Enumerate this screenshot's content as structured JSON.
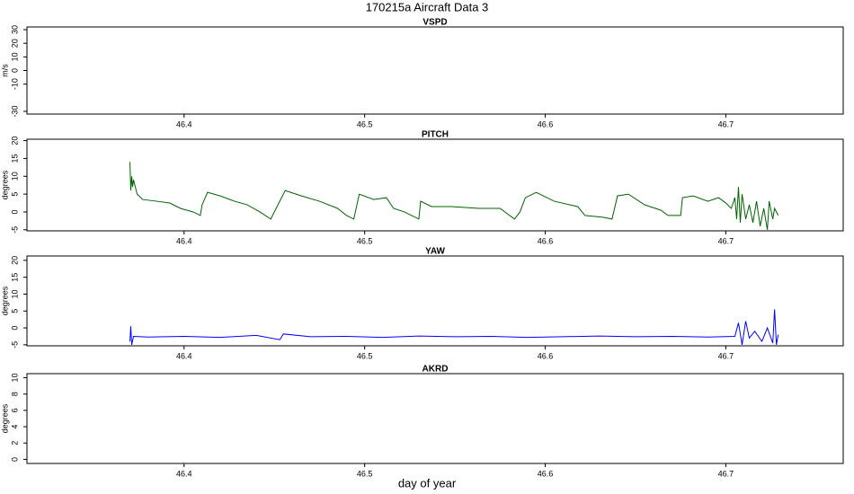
{
  "title": "170215a   Aircraft Data 3",
  "xlabel": "day of year",
  "chart_data": [
    {
      "type": "line",
      "title": "VSPD",
      "ylabel": "m/s",
      "xlim": [
        46.313,
        46.765
      ],
      "xticks": [
        46.4,
        46.5,
        46.6,
        46.7
      ],
      "ylim": [
        -32,
        32
      ],
      "yticks": [
        -30,
        -10,
        0,
        10,
        20,
        30
      ],
      "series": []
    },
    {
      "type": "line",
      "title": "PITCH",
      "ylabel": "degrees",
      "xlim": [
        46.313,
        46.765
      ],
      "xticks": [
        46.4,
        46.5,
        46.6,
        46.7
      ],
      "ylim": [
        -5.3,
        20.4
      ],
      "yticks": [
        -5,
        0,
        5,
        10,
        15,
        20
      ],
      "series": [
        {
          "color": "#006400",
          "x": [
            46.37,
            46.3705,
            46.371,
            46.3715,
            46.372,
            46.374,
            46.377,
            46.385,
            46.392,
            46.398,
            46.405,
            46.409,
            46.41,
            46.413,
            46.42,
            46.428,
            46.435,
            46.442,
            46.448,
            46.452,
            46.456,
            46.465,
            46.475,
            46.485,
            46.49,
            46.494,
            46.497,
            46.505,
            46.512,
            46.516,
            46.522,
            46.53,
            46.531,
            46.537,
            46.548,
            46.563,
            46.575,
            46.583,
            46.586,
            46.589,
            46.595,
            46.605,
            46.618,
            46.622,
            46.632,
            46.637,
            46.64,
            46.646,
            46.655,
            46.664,
            46.668,
            46.675,
            46.676,
            46.682,
            46.69,
            46.696,
            46.7,
            46.703,
            46.705,
            46.706,
            46.707,
            46.708,
            46.709,
            46.711,
            46.713,
            46.715,
            46.717,
            46.719,
            46.721,
            46.723,
            46.724,
            46.726,
            46.727,
            46.729
          ],
          "values": [
            14,
            6,
            10,
            7,
            9,
            5,
            3.5,
            3,
            2.5,
            1,
            0,
            -1,
            2,
            5.5,
            4.5,
            3,
            2,
            0,
            -2,
            2,
            6,
            4.5,
            3,
            1,
            -1,
            -2,
            5,
            3.5,
            4,
            1,
            0,
            -2,
            3,
            1.5,
            1.5,
            1,
            1,
            -2,
            0,
            4,
            5.5,
            3,
            1.5,
            -1,
            -1.5,
            -2,
            4.5,
            5,
            2,
            0.5,
            -1,
            -1,
            4,
            4.5,
            3,
            4,
            2.5,
            1,
            4,
            -2,
            7,
            -3,
            5,
            -2,
            2,
            -3,
            3,
            -4,
            1,
            -5,
            3,
            -2,
            1,
            -1
          ]
        }
      ]
    },
    {
      "type": "line",
      "title": "YAW",
      "ylabel": "degrees",
      "xlim": [
        46.313,
        46.765
      ],
      "xticks": [
        46.4,
        46.5,
        46.6,
        46.7
      ],
      "ylim": [
        -5.3,
        21.3
      ],
      "yticks": [
        -5,
        0,
        5,
        10,
        15,
        20
      ],
      "series": [
        {
          "color": "#0000ff",
          "x": [
            46.37,
            46.3705,
            46.371,
            46.372,
            46.38,
            46.4,
            46.42,
            46.44,
            46.453,
            46.455,
            46.47,
            46.49,
            46.51,
            46.53,
            46.55,
            46.57,
            46.59,
            46.61,
            46.63,
            46.65,
            46.67,
            46.69,
            46.705,
            46.707,
            46.709,
            46.711,
            46.713,
            46.716,
            46.72,
            46.723,
            46.726,
            46.727,
            46.728,
            46.729
          ],
          "values": [
            -4,
            0.5,
            -5,
            -2.5,
            -2.7,
            -2.5,
            -2.8,
            -2.2,
            -3.5,
            -1.8,
            -2.6,
            -2.5,
            -2.8,
            -2.4,
            -2.6,
            -2.5,
            -2.8,
            -2.6,
            -2.4,
            -2.6,
            -2.5,
            -2.7,
            -2.5,
            1.5,
            -5,
            2,
            -3,
            -1,
            -4,
            0,
            -4.5,
            5.5,
            -5,
            -2
          ]
        }
      ]
    },
    {
      "type": "line",
      "title": "AKRD",
      "ylabel": "degrees",
      "xlim": [
        46.313,
        46.765
      ],
      "xticks": [
        46.4,
        46.5,
        46.6,
        46.7
      ],
      "ylim": [
        -0.5,
        10.5
      ],
      "yticks": [
        0,
        2,
        4,
        6,
        8,
        10
      ],
      "series": []
    }
  ]
}
